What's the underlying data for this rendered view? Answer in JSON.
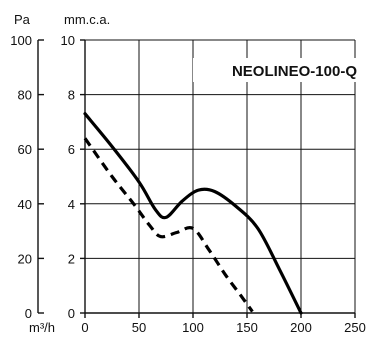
{
  "chart_data": {
    "type": "line",
    "title": "NEOLINEO-100-Q",
    "x_unit": "m³/h",
    "y_unit_left": "Pa",
    "y_unit_right": "mm.c.a.",
    "x": {
      "min": 0,
      "max": 250,
      "ticks": [
        0,
        50,
        100,
        150,
        200,
        250
      ]
    },
    "y_mm": {
      "min": 0,
      "max": 10,
      "ticks": [
        0,
        2,
        4,
        6,
        8,
        10
      ]
    },
    "y_pa": {
      "min": 0,
      "max": 100,
      "ticks": [
        0,
        20,
        40,
        60,
        80,
        100
      ]
    },
    "grid": true,
    "series": [
      {
        "style": "solid",
        "points": [
          [
            0,
            7.3
          ],
          [
            25,
            6.1
          ],
          [
            50,
            4.8
          ],
          [
            65,
            3.8
          ],
          [
            75,
            3.5
          ],
          [
            90,
            4.1
          ],
          [
            105,
            4.5
          ],
          [
            120,
            4.45
          ],
          [
            140,
            3.9
          ],
          [
            160,
            3.1
          ],
          [
            180,
            1.6
          ],
          [
            200,
            0
          ]
        ]
      },
      {
        "style": "dashed",
        "points": [
          [
            0,
            6.4
          ],
          [
            25,
            5.0
          ],
          [
            45,
            4.0
          ],
          [
            60,
            3.2
          ],
          [
            70,
            2.8
          ],
          [
            85,
            2.95
          ],
          [
            100,
            3.1
          ],
          [
            115,
            2.3
          ],
          [
            130,
            1.4
          ],
          [
            145,
            0.6
          ],
          [
            155,
            0.05
          ]
        ]
      }
    ]
  }
}
